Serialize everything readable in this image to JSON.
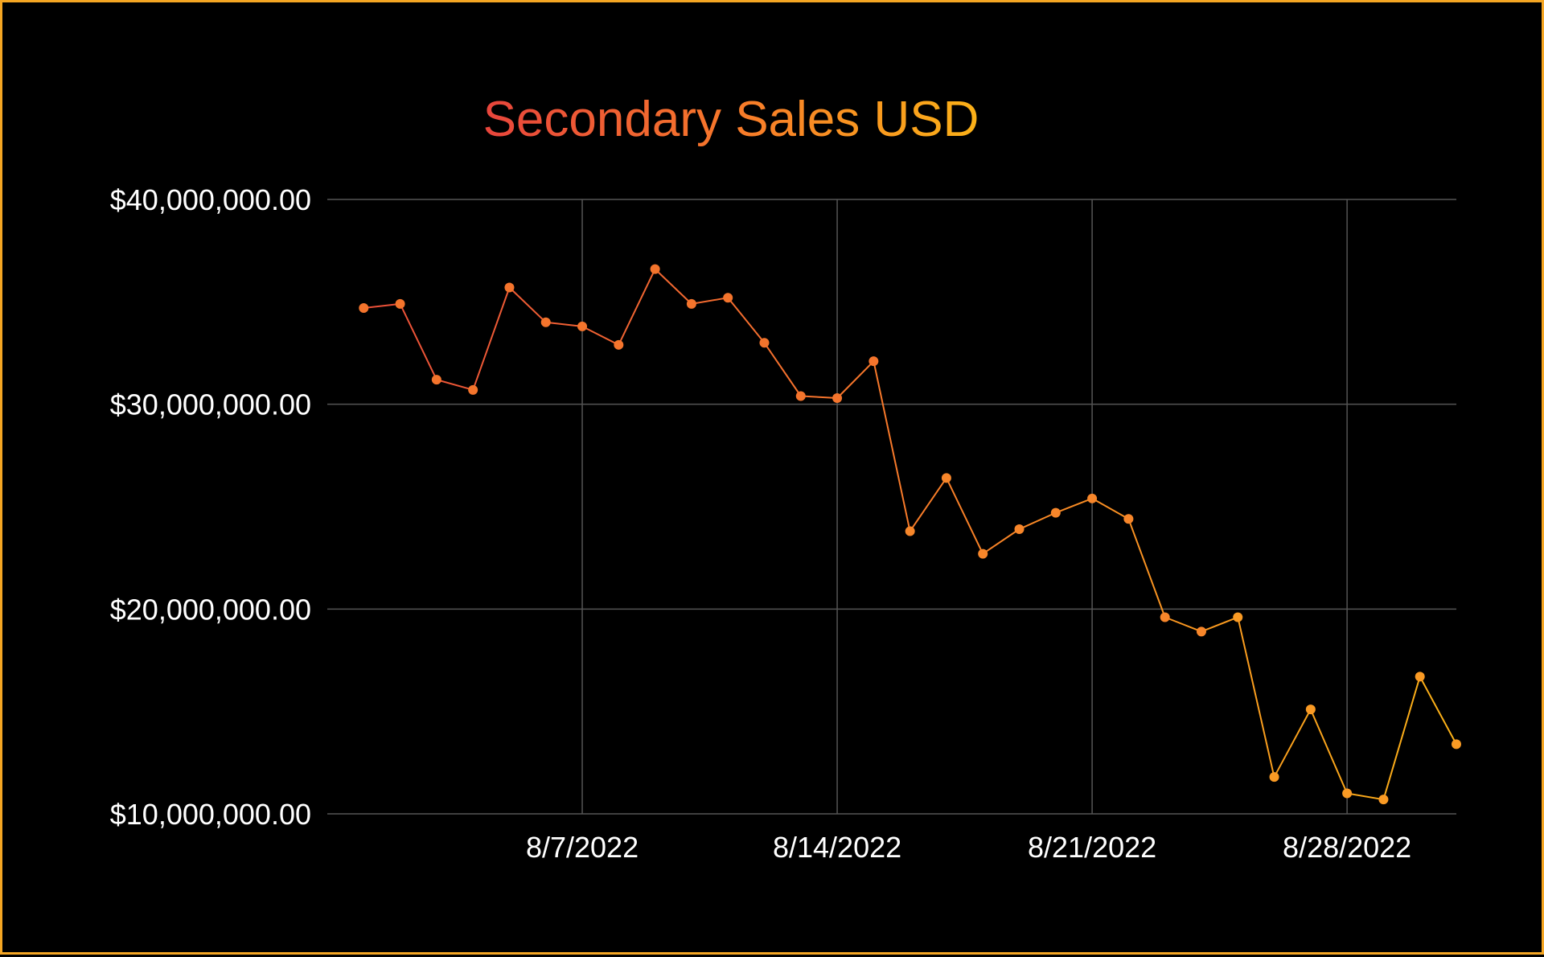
{
  "chart_data": {
    "type": "line",
    "title": "Secondary Sales USD",
    "xlabel": "",
    "ylabel": "",
    "ylim": [
      10000000,
      40000000
    ],
    "yticks": [
      10000000,
      20000000,
      30000000,
      40000000
    ],
    "ytick_labels": [
      "$10,000,000.00",
      "$20,000,000.00",
      "$30,000,000.00",
      "$40,000,000.00"
    ],
    "xlim": [
      "7/31/2022",
      "8/31/2022"
    ],
    "xticks": [
      "8/7/2022",
      "8/14/2022",
      "8/21/2022",
      "8/28/2022"
    ],
    "grid": true,
    "colors": {
      "start": "#e8453c",
      "mid": "#f7792a",
      "end": "#fbb117",
      "background": "#000000",
      "grid": "#555555",
      "text": "#ffffff"
    },
    "series": [
      {
        "x": [
          "8/1/2022",
          "8/2/2022",
          "8/3/2022",
          "8/4/2022",
          "8/5/2022",
          "8/6/2022",
          "8/7/2022",
          "8/8/2022",
          "8/9/2022",
          "8/10/2022",
          "8/11/2022",
          "8/12/2022",
          "8/13/2022",
          "8/14/2022",
          "8/15/2022",
          "8/16/2022",
          "8/17/2022",
          "8/18/2022",
          "8/19/2022",
          "8/20/2022",
          "8/21/2022",
          "8/22/2022",
          "8/23/2022",
          "8/24/2022",
          "8/25/2022",
          "8/26/2022",
          "8/27/2022",
          "8/28/2022",
          "8/29/2022",
          "8/30/2022",
          "8/31/2022"
        ],
        "values": [
          34700000,
          34900000,
          31200000,
          30700000,
          35700000,
          34000000,
          33800000,
          32900000,
          36600000,
          34900000,
          35200000,
          33000000,
          30400000,
          30300000,
          32100000,
          23800000,
          26400000,
          22700000,
          23900000,
          24700000,
          25400000,
          24400000,
          19600000,
          18900000,
          19600000,
          11800000,
          15100000,
          11000000,
          10700000,
          16700000,
          13400000
        ]
      }
    ]
  }
}
